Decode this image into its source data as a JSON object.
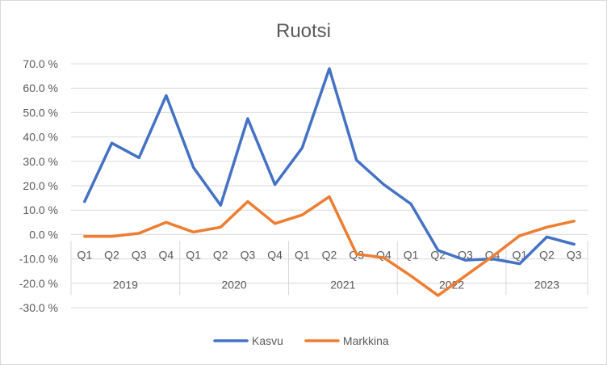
{
  "chart_data": {
    "type": "line",
    "title": "Ruotsi",
    "xlabel": "",
    "ylabel": "",
    "ylim": [
      -30,
      70
    ],
    "yticks": [
      70,
      60,
      50,
      40,
      30,
      20,
      10,
      0,
      -10,
      -20,
      -30
    ],
    "ytick_labels": [
      "70.0 %",
      "60.0 %",
      "50.0 %",
      "40.0 %",
      "30.0 %",
      "20.0 %",
      "10.0 %",
      "0.0 %",
      "-10.0 %",
      "-20.0 %",
      "-30.0 %"
    ],
    "grid": true,
    "legend": "bottom",
    "categories": [
      "Q1",
      "Q2",
      "Q3",
      "Q4",
      "Q1",
      "Q2",
      "Q3",
      "Q4",
      "Q1",
      "Q2",
      "Q3",
      "Q4",
      "Q1",
      "Q2",
      "Q3",
      "Q4",
      "Q1",
      "Q2",
      "Q3"
    ],
    "groups": [
      {
        "label": "2019",
        "count": 4
      },
      {
        "label": "2020",
        "count": 4
      },
      {
        "label": "2021",
        "count": 4
      },
      {
        "label": "2022",
        "count": 4
      },
      {
        "label": "2023",
        "count": 3
      }
    ],
    "series": [
      {
        "name": "Kasvu",
        "color": "#4472c4",
        "values": [
          13.5,
          37.5,
          31.5,
          57.0,
          27.5,
          12.0,
          47.5,
          20.5,
          35.5,
          68.0,
          30.5,
          20.5,
          12.5,
          -6.5,
          -10.5,
          -10.0,
          -12.0,
          -1.0,
          -4.0
        ]
      },
      {
        "name": "Markkina",
        "color": "#ed7d31",
        "values": [
          -0.8,
          -0.8,
          0.5,
          5.0,
          1.0,
          3.0,
          13.5,
          4.5,
          8.0,
          15.5,
          -8.0,
          -9.5,
          -17.0,
          -25.0,
          -17.0,
          -9.0,
          -0.5,
          3.0,
          5.5
        ]
      }
    ]
  }
}
